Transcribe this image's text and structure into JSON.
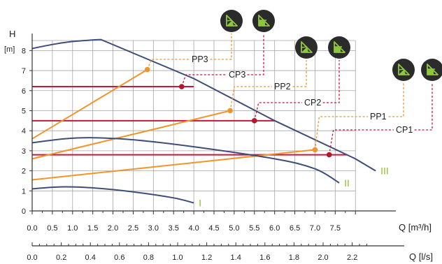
{
  "chart_data": {
    "type": "line",
    "ylabel": "H",
    "yunit": "[m]",
    "xlabel_primary": "Q [m³/h]",
    "xlabel_secondary": "Q [l/s]",
    "xlim": [
      0,
      9
    ],
    "ylim": [
      0,
      8.5
    ],
    "grid": true,
    "y_ticks": [
      "0",
      "1",
      "2",
      "3",
      "4",
      "5",
      "6",
      "7",
      "8"
    ],
    "x_ticks_primary": [
      "0.0",
      "0.5",
      "1.0",
      "1.5",
      "2.0",
      "2.5",
      "3.0",
      "3.5",
      "4.0",
      "4.5",
      "5.0",
      "5.5",
      "6.0",
      "6.5",
      "7.0",
      "7.5"
    ],
    "x_ticks_secondary": [
      "0.0",
      "0.2",
      "0.4",
      "0.6",
      "0.8",
      "1.0",
      "1.2",
      "1.4",
      "1.6",
      "1.8",
      "2.0",
      "2.2"
    ],
    "curves": [
      {
        "name": "III",
        "points": [
          [
            0,
            8.1
          ],
          [
            0.5,
            8.3
          ],
          [
            1.0,
            8.45
          ],
          [
            1.7,
            8.55
          ],
          [
            4.0,
            6.6
          ],
          [
            6.0,
            4.5
          ],
          [
            8.0,
            2.6
          ],
          [
            8.5,
            2.0
          ]
        ]
      },
      {
        "name": "II",
        "points": [
          [
            0,
            3.4
          ],
          [
            0.8,
            3.6
          ],
          [
            1.5,
            3.65
          ],
          [
            2.5,
            3.55
          ],
          [
            4.0,
            3.2
          ],
          [
            6.0,
            2.6
          ],
          [
            7.0,
            2.1
          ],
          [
            7.6,
            1.4
          ]
        ]
      },
      {
        "name": "I",
        "points": [
          [
            0,
            1.1
          ],
          [
            0.7,
            1.2
          ],
          [
            1.5,
            1.15
          ],
          [
            2.5,
            0.95
          ],
          [
            3.5,
            0.65
          ],
          [
            4.0,
            0.4
          ]
        ]
      }
    ],
    "proportional_pressure": [
      {
        "name": "PP3",
        "points": [
          [
            0,
            3.6
          ],
          [
            2.85,
            7.05
          ]
        ],
        "control_point": [
          2.85,
          7.05
        ]
      },
      {
        "name": "PP2",
        "points": [
          [
            0,
            2.6
          ],
          [
            4.9,
            5.0
          ]
        ],
        "control_point": [
          4.9,
          5.0
        ]
      },
      {
        "name": "PP1",
        "points": [
          [
            0,
            1.55
          ],
          [
            7.0,
            3.05
          ]
        ],
        "control_point": [
          7.0,
          3.05
        ]
      }
    ],
    "constant_pressure": [
      {
        "name": "CP3",
        "value": 6.2,
        "x_end": 4.0,
        "control_point": [
          3.7,
          6.2
        ]
      },
      {
        "name": "CP2",
        "value": 4.5,
        "x_end": 6.0,
        "control_point": [
          5.5,
          4.5
        ]
      },
      {
        "name": "CP1",
        "value": 2.8,
        "x_end": 7.8,
        "control_point": [
          7.35,
          2.8
        ]
      }
    ],
    "colors": {
      "curve": "#3e4e7a",
      "pp": "#f0952c",
      "cp": "#c8183a",
      "cp_dot": "#b3172e",
      "roman_label": "#8fbf2a",
      "icon_bg": "#2b2b2b",
      "icon_fg": "#8fc63f"
    },
    "icons": [
      "proportional-pressure-icon",
      "constant-pressure-icon"
    ]
  }
}
